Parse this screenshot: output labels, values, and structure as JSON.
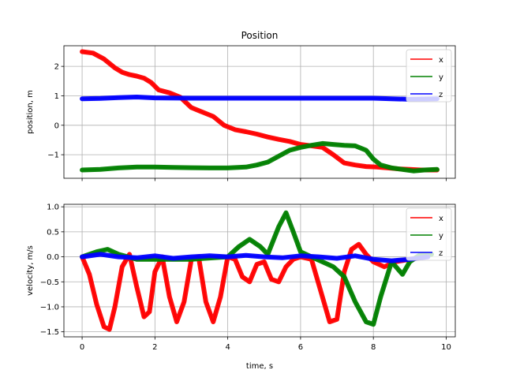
{
  "chart_data": [
    {
      "type": "line",
      "title": "Position",
      "xlabel": "",
      "ylabel": "position, m",
      "xlim": [
        -0.5,
        10.25
      ],
      "ylim": [
        -1.8,
        2.7
      ],
      "xticks": [
        0,
        2,
        4,
        6,
        8,
        10
      ],
      "yticks": [
        -1,
        0,
        1,
        2
      ],
      "ytick_labels": [
        "−1",
        "0",
        "1",
        "2"
      ],
      "grid": true,
      "legend": "top-right",
      "series": [
        {
          "name": "x",
          "color": "#ff0000",
          "kind": "thick",
          "x": [
            0,
            0.3,
            0.6,
            0.9,
            1.1,
            1.3,
            1.5,
            1.7,
            1.9,
            2.1,
            2.4,
            2.7,
            3.0,
            3.3,
            3.6,
            3.9,
            4.2,
            4.5,
            4.8,
            5.1,
            5.4,
            5.7,
            6.0,
            6.3,
            6.6,
            6.9,
            7.2,
            7.5,
            7.8,
            8.1,
            8.4,
            8.7,
            9.0,
            9.3,
            9.75
          ],
          "y": [
            2.5,
            2.45,
            2.25,
            1.95,
            1.8,
            1.72,
            1.67,
            1.6,
            1.45,
            1.2,
            1.1,
            0.95,
            0.6,
            0.45,
            0.3,
            0.0,
            -0.15,
            -0.22,
            -0.3,
            -0.4,
            -0.48,
            -0.55,
            -0.65,
            -0.7,
            -0.75,
            -1.0,
            -1.28,
            -1.35,
            -1.4,
            -1.42,
            -1.45,
            -1.48,
            -1.5,
            -1.52,
            -1.52
          ]
        },
        {
          "name": "y",
          "color": "#008000",
          "kind": "thick",
          "x": [
            0,
            0.5,
            1.0,
            1.5,
            2.0,
            2.5,
            3.0,
            3.5,
            4.0,
            4.5,
            4.8,
            5.1,
            5.4,
            5.7,
            6.0,
            6.3,
            6.6,
            6.9,
            7.2,
            7.5,
            7.8,
            8.0,
            8.2,
            8.5,
            8.8,
            9.1,
            9.4,
            9.75
          ],
          "y": [
            -1.52,
            -1.5,
            -1.45,
            -1.42,
            -1.42,
            -1.43,
            -1.44,
            -1.45,
            -1.45,
            -1.42,
            -1.35,
            -1.25,
            -1.05,
            -0.85,
            -0.75,
            -0.68,
            -0.62,
            -0.65,
            -0.68,
            -0.7,
            -0.85,
            -1.15,
            -1.35,
            -1.45,
            -1.5,
            -1.55,
            -1.52,
            -1.5
          ]
        },
        {
          "name": "z",
          "color": "#0000ff",
          "kind": "thick",
          "x": [
            0,
            0.5,
            1.0,
            1.5,
            2.0,
            3.0,
            4.0,
            5.0,
            6.0,
            7.0,
            8.0,
            8.5,
            9.0,
            9.75
          ],
          "y": [
            0.9,
            0.91,
            0.94,
            0.96,
            0.93,
            0.92,
            0.92,
            0.92,
            0.92,
            0.92,
            0.92,
            0.9,
            0.88,
            0.9
          ]
        }
      ]
    },
    {
      "type": "line",
      "title": "",
      "xlabel": "time, s",
      "ylabel": "velocity, m/s",
      "xlim": [
        -0.5,
        10.25
      ],
      "ylim": [
        -1.6,
        1.05
      ],
      "xticks": [
        0,
        2,
        4,
        6,
        8,
        10
      ],
      "yticks": [
        -1.5,
        -1.0,
        -0.5,
        0.0,
        0.5,
        1.0
      ],
      "ytick_labels": [
        "−1.5",
        "−1.0",
        "−0.5",
        "0.0",
        "0.5",
        "1.0"
      ],
      "grid": true,
      "legend": "top-right",
      "series": [
        {
          "name": "x",
          "color": "#ff0000",
          "kind": "thick",
          "x": [
            0,
            0.2,
            0.4,
            0.6,
            0.75,
            0.9,
            1.1,
            1.3,
            1.5,
            1.7,
            1.85,
            2.0,
            2.2,
            2.4,
            2.6,
            2.8,
            3.0,
            3.2,
            3.4,
            3.6,
            3.8,
            4.0,
            4.2,
            4.4,
            4.6,
            4.8,
            5.0,
            5.2,
            5.4,
            5.6,
            5.8,
            6.0,
            6.3,
            6.6,
            6.8,
            7.0,
            7.2,
            7.4,
            7.6,
            7.8,
            8.0,
            8.3,
            8.6,
            9.0,
            9.4
          ],
          "y": [
            0.0,
            -0.35,
            -0.95,
            -1.4,
            -1.45,
            -1.0,
            -0.2,
            0.05,
            -0.6,
            -1.2,
            -1.1,
            -0.3,
            0.0,
            -0.8,
            -1.3,
            -0.9,
            -0.05,
            0.0,
            -0.9,
            -1.3,
            -0.8,
            0.0,
            -0.05,
            -0.4,
            -0.5,
            -0.15,
            -0.1,
            -0.45,
            -0.5,
            -0.2,
            -0.05,
            0.0,
            -0.05,
            -0.8,
            -1.3,
            -1.25,
            -0.3,
            0.15,
            0.25,
            0.05,
            -0.1,
            -0.2,
            -0.1,
            -0.05,
            0.0
          ]
        },
        {
          "name": "y",
          "color": "#008000",
          "kind": "thick",
          "x": [
            0,
            0.4,
            0.7,
            1.0,
            1.5,
            2.0,
            3.0,
            4.0,
            4.3,
            4.6,
            4.9,
            5.1,
            5.4,
            5.6,
            5.8,
            6.0,
            6.3,
            6.6,
            6.9,
            7.2,
            7.5,
            7.8,
            8.0,
            8.2,
            8.5,
            8.8,
            9.0,
            9.3,
            9.6
          ],
          "y": [
            0.0,
            0.1,
            0.15,
            0.05,
            -0.05,
            -0.05,
            -0.05,
            0.0,
            0.2,
            0.35,
            0.2,
            0.05,
            0.6,
            0.88,
            0.5,
            0.1,
            0.0,
            -0.1,
            -0.2,
            -0.4,
            -0.9,
            -1.3,
            -1.35,
            -0.8,
            -0.1,
            -0.35,
            -0.1,
            0.05,
            0.05
          ]
        },
        {
          "name": "z",
          "color": "#0000ff",
          "kind": "thick",
          "x": [
            0,
            0.5,
            1.0,
            1.5,
            2.0,
            2.5,
            3.0,
            3.5,
            4.0,
            4.5,
            5.0,
            5.5,
            6.0,
            6.5,
            7.0,
            7.5,
            8.0,
            8.5,
            9.0,
            9.5
          ],
          "y": [
            0.0,
            0.05,
            0.0,
            -0.02,
            0.02,
            -0.03,
            0.0,
            0.02,
            0.0,
            0.03,
            0.0,
            -0.02,
            0.02,
            0.0,
            -0.03,
            0.02,
            -0.05,
            -0.08,
            -0.05,
            0.0
          ]
        }
      ]
    }
  ]
}
